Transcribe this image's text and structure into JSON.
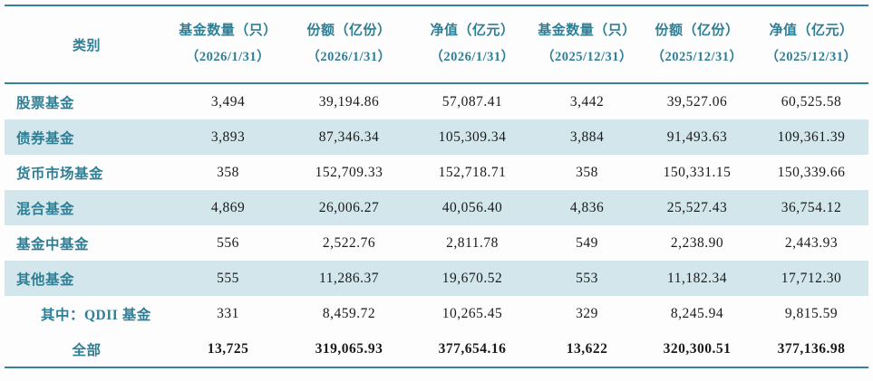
{
  "colors": {
    "accent_teal": "#31849b",
    "stripe_blue": "#d2e6ec",
    "number_text": "#1a1a1a"
  },
  "table": {
    "header": {
      "category_label": "类别",
      "columns": [
        {
          "label": "基金数量（只）",
          "date": "（2026/1/31）"
        },
        {
          "label": "份额（亿份）",
          "date": "（2026/1/31）"
        },
        {
          "label": "净值（亿元）",
          "date": "（2026/1/31）"
        },
        {
          "label": "基金数量（只）",
          "date": "（2025/12/31）"
        },
        {
          "label": "份额（亿份）",
          "date": "（2025/12/31）"
        },
        {
          "label": "净值（亿元）",
          "date": "（2025/12/31）"
        }
      ]
    },
    "rows": [
      {
        "label": "股票基金",
        "values": [
          "3,494",
          "39,194.86",
          "57,087.41",
          "3,442",
          "39,527.06",
          "60,525.58"
        ]
      },
      {
        "label": "债券基金",
        "values": [
          "3,893",
          "87,346.34",
          "105,309.34",
          "3,884",
          "91,493.63",
          "109,361.39"
        ]
      },
      {
        "label": "货币市场基金",
        "values": [
          "358",
          "152,709.33",
          "152,718.71",
          "358",
          "150,331.15",
          "150,339.66"
        ]
      },
      {
        "label": "混合基金",
        "values": [
          "4,869",
          "26,006.27",
          "40,056.40",
          "4,836",
          "25,527.43",
          "36,754.12"
        ]
      },
      {
        "label": "基金中基金",
        "values": [
          "556",
          "2,522.76",
          "2,811.78",
          "549",
          "2,238.90",
          "2,443.93"
        ]
      },
      {
        "label": "其他基金",
        "values": [
          "555",
          "11,286.37",
          "19,670.52",
          "553",
          "11,182.34",
          "17,712.30"
        ]
      },
      {
        "label": "其中：QDII 基金",
        "values": [
          "331",
          "8,459.72",
          "10,265.45",
          "329",
          "8,245.94",
          "9,815.59"
        ]
      },
      {
        "label": "全部",
        "values": [
          "13,725",
          "319,065.93",
          "377,654.16",
          "13,622",
          "320,300.51",
          "377,136.98"
        ]
      }
    ]
  },
  "chart_data": {
    "type": "table",
    "columns": [
      "类别",
      "基金数量（只）（2026/1/31）",
      "份额（亿份）（2026/1/31）",
      "净值（亿元）（2026/1/31）",
      "基金数量（只）（2025/12/31）",
      "份额（亿份）（2025/12/31）",
      "净值（亿元）（2025/12/31）"
    ],
    "rows": [
      [
        "股票基金",
        3494,
        39194.86,
        57087.41,
        3442,
        39527.06,
        60525.58
      ],
      [
        "债券基金",
        3893,
        87346.34,
        105309.34,
        3884,
        91493.63,
        109361.39
      ],
      [
        "货币市场基金",
        358,
        152709.33,
        152718.71,
        358,
        150331.15,
        150339.66
      ],
      [
        "混合基金",
        4869,
        26006.27,
        40056.4,
        4836,
        25527.43,
        36754.12
      ],
      [
        "基金中基金",
        556,
        2522.76,
        2811.78,
        549,
        2238.9,
        2443.93
      ],
      [
        "其他基金",
        555,
        11286.37,
        19670.52,
        553,
        11182.34,
        17712.3
      ],
      [
        "其中：QDII 基金",
        331,
        8459.72,
        10265.45,
        329,
        8245.94,
        9815.59
      ],
      [
        "全部",
        13725,
        319065.93,
        377654.16,
        13622,
        320300.51,
        377136.98
      ]
    ]
  }
}
